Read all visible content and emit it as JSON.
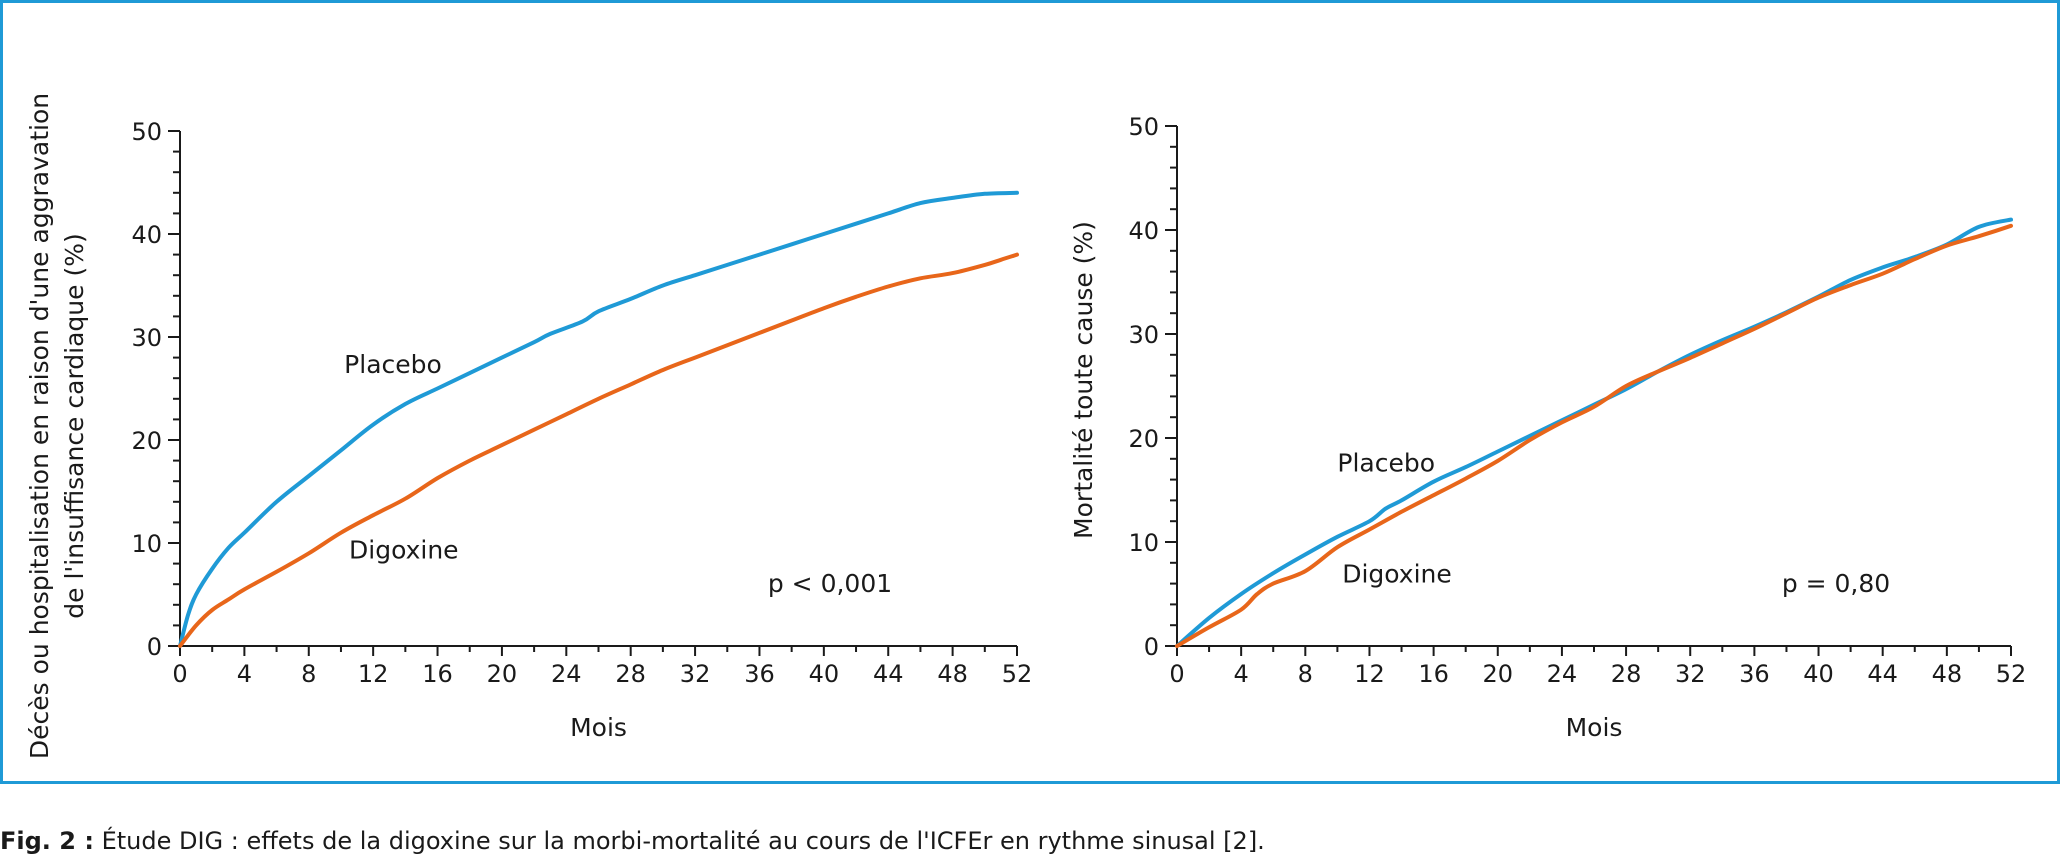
{
  "colors": {
    "placebo": "#1f9ad6",
    "digoxine": "#e8661a",
    "frame": "#1f9ad6",
    "axis": "#1a1a1a"
  },
  "caption": {
    "label": "Fig. 2 :",
    "text": " Étude DIG : effets de la digoxine sur la morbi-mortalité au cours de l'ICFEr en rythme sinusal [2]."
  },
  "chart_data": [
    {
      "type": "line",
      "xlabel": "Mois",
      "ylabel": [
        "Décès ou hospitalisation en raison d'une aggravation",
        "de l'insuffisance cardiaque (%)"
      ],
      "xlim": [
        0,
        52
      ],
      "ylim": [
        0,
        50
      ],
      "xticks": [
        0,
        4,
        8,
        12,
        16,
        20,
        24,
        28,
        32,
        36,
        40,
        44,
        48,
        52
      ],
      "yticks": [
        0,
        10,
        20,
        30,
        40,
        50
      ],
      "grid": false,
      "annotation": "p < 0,001",
      "series": [
        {
          "name": "Placebo",
          "x": [
            0,
            0.5,
            1,
            2,
            3,
            4,
            6,
            8,
            10,
            12,
            14,
            16,
            18,
            20,
            22,
            23,
            25,
            26,
            28,
            30,
            32,
            34,
            36,
            38,
            40,
            42,
            44,
            46,
            48,
            50,
            52
          ],
          "y": [
            0,
            3,
            5,
            7.5,
            9.5,
            11,
            14,
            16.5,
            19,
            21.5,
            23.5,
            25,
            26.5,
            28,
            29.5,
            30.3,
            31.5,
            32.5,
            33.7,
            35,
            36,
            37,
            38,
            39,
            40,
            41,
            42,
            43,
            43.5,
            43.9,
            44
          ]
        },
        {
          "name": "Digoxine",
          "x": [
            0,
            1,
            2,
            3,
            4,
            6,
            8,
            10,
            12,
            14,
            16,
            18,
            20,
            22,
            24,
            26,
            28,
            30,
            32,
            34,
            36,
            38,
            40,
            42,
            44,
            46,
            48,
            50,
            51,
            52
          ],
          "y": [
            0,
            2,
            3.5,
            4.5,
            5.5,
            7.2,
            9,
            11,
            12.7,
            14.3,
            16.3,
            18,
            19.5,
            21,
            22.5,
            24,
            25.4,
            26.8,
            28,
            29.2,
            30.4,
            31.6,
            32.8,
            33.9,
            34.9,
            35.7,
            36.2,
            37,
            37.5,
            38
          ]
        }
      ],
      "labels": [
        {
          "text": "Placebo",
          "x": 10.2,
          "y": 26.5
        },
        {
          "text": "Digoxine",
          "x": 10.5,
          "y": 8.5
        }
      ]
    },
    {
      "type": "line",
      "xlabel": "Mois",
      "ylabel": [
        "Mortalité toute cause (%)"
      ],
      "xlim": [
        0,
        52
      ],
      "ylim": [
        0,
        50
      ],
      "xticks": [
        0,
        4,
        8,
        12,
        16,
        20,
        24,
        28,
        32,
        36,
        40,
        44,
        48,
        52
      ],
      "yticks": [
        0,
        10,
        20,
        30,
        40,
        50
      ],
      "grid": false,
      "annotation": "p = 0,80",
      "series": [
        {
          "name": "Placebo",
          "x": [
            0,
            2,
            4,
            6,
            8,
            10,
            12,
            13,
            14,
            16,
            18,
            20,
            22,
            24,
            26,
            28,
            30,
            32,
            34,
            36,
            38,
            40,
            42,
            44,
            46,
            48,
            50,
            52
          ],
          "y": [
            0,
            2.7,
            5,
            7,
            8.8,
            10.5,
            12,
            13.2,
            14,
            15.8,
            17.2,
            18.7,
            20.2,
            21.7,
            23.2,
            24.7,
            26.4,
            28,
            29.4,
            30.7,
            32.1,
            33.6,
            35.2,
            36.4,
            37.4,
            38.6,
            40.3,
            41
          ]
        },
        {
          "name": "Digoxine",
          "x": [
            0,
            2,
            4,
            5,
            6,
            8,
            10,
            12,
            14,
            16,
            18,
            20,
            22,
            24,
            26,
            28,
            30,
            32,
            34,
            36,
            38,
            40,
            42,
            44,
            46,
            48,
            50,
            52
          ],
          "y": [
            0,
            1.8,
            3.5,
            5,
            6,
            7.2,
            9.5,
            11.2,
            12.9,
            14.5,
            16.1,
            17.8,
            19.8,
            21.5,
            23,
            25,
            26.4,
            27.7,
            29.1,
            30.5,
            32,
            33.5,
            34.7,
            35.8,
            37.2,
            38.5,
            39.4,
            40.4
          ]
        }
      ],
      "labels": [
        {
          "text": "Placebo",
          "x": 10,
          "y": 16.8
        },
        {
          "text": "Digoxine",
          "x": 10.3,
          "y": 6.1
        }
      ]
    }
  ]
}
